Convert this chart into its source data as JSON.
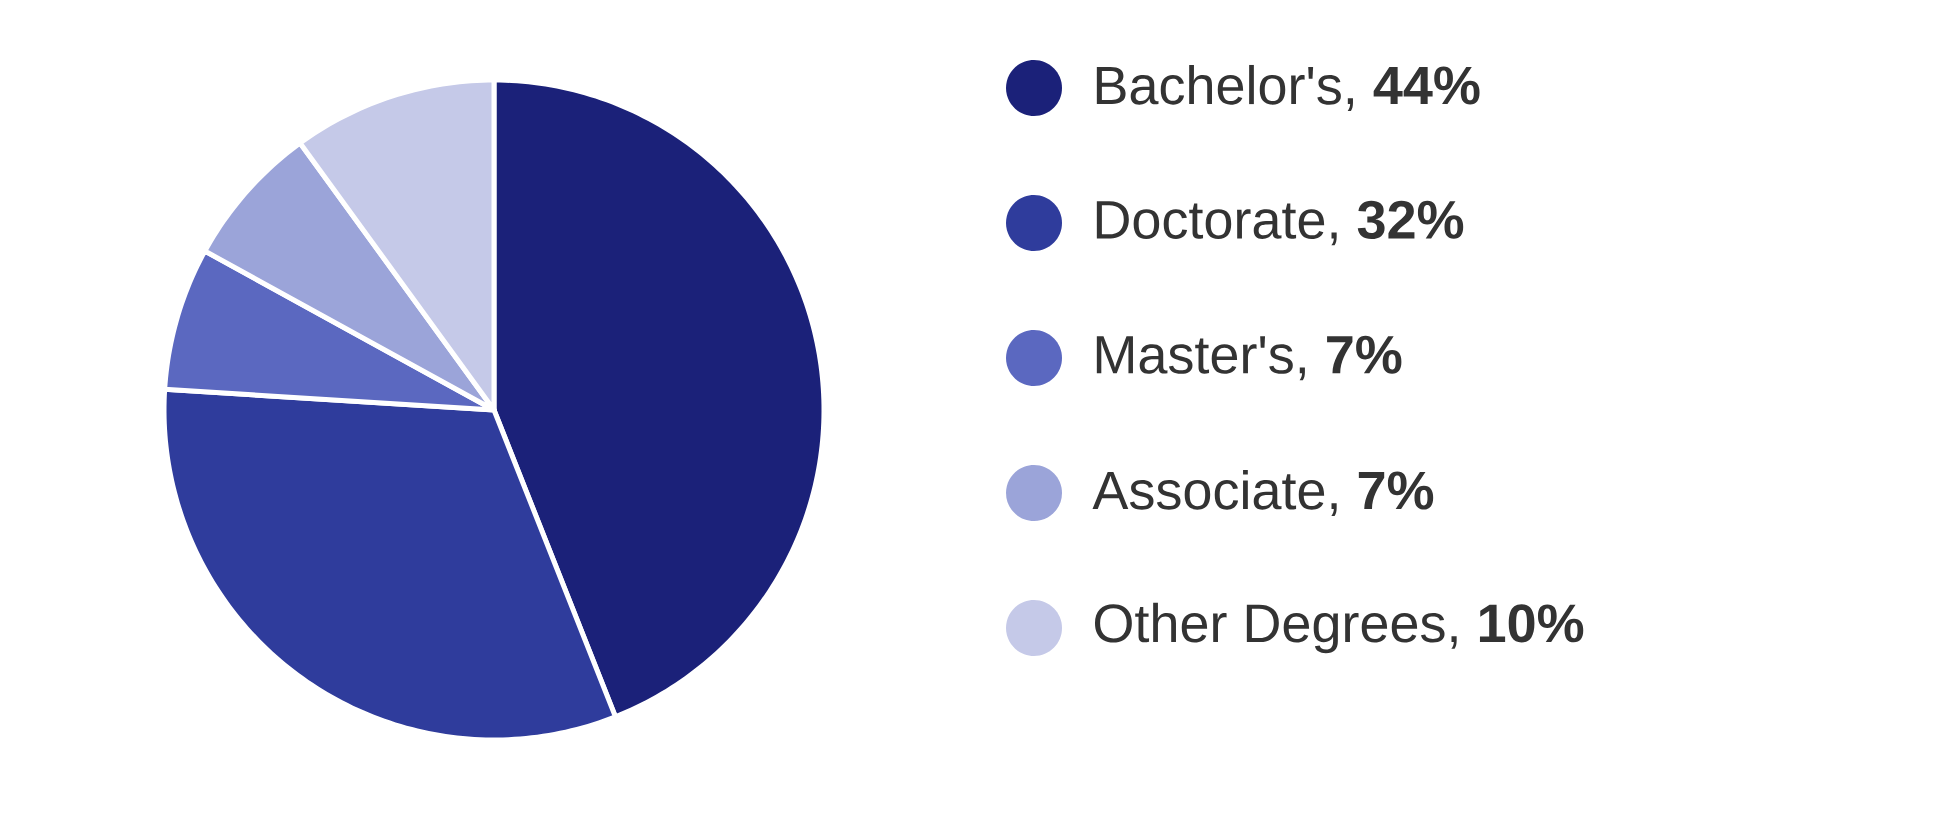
{
  "chart_data": {
    "type": "pie",
    "categories": [
      "Bachelor's, **44%**",
      "Doctorate, **32%**",
      "Master's, **7%**",
      "Associate, **7%**",
      "Other Degrees, **10%**"
    ],
    "values": [
      44,
      32,
      7,
      7,
      10
    ],
    "colors": [
      "#1b2179",
      "#2f3c9c",
      "#5b68c0",
      "#9ba4d9",
      "#c5c9e8"
    ],
    "legend": "right"
  }
}
